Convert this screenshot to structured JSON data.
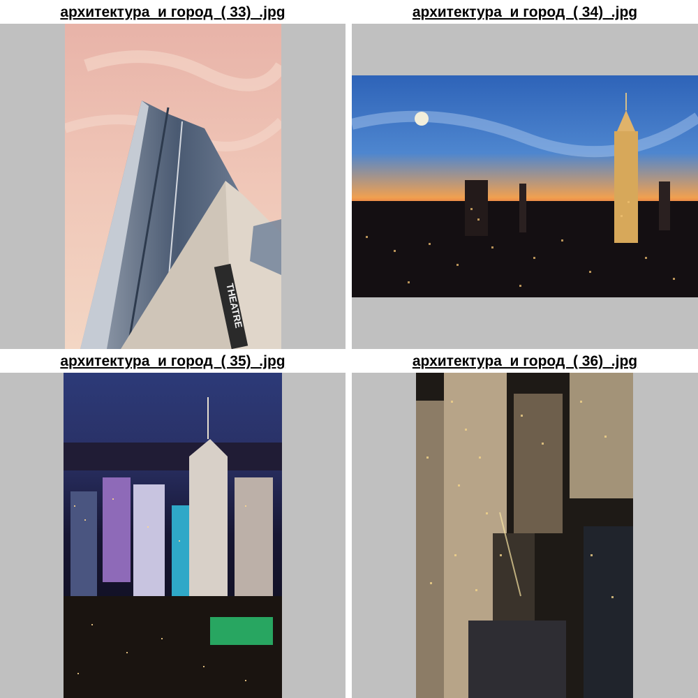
{
  "gallery": {
    "background_color": "#c0c0c0",
    "items": [
      {
        "filename": "архитектура  и город  ( 33)  .jpg",
        "thumbnail_icon": "skyscraper-sunset-photo-icon"
      },
      {
        "filename": "архитектура  и город  ( 34)  .jpg",
        "thumbnail_icon": "city-skyline-dusk-photo-icon",
        "sign_text": ""
      },
      {
        "filename": "архитектура  и город  ( 35)  .jpg",
        "thumbnail_icon": "night-city-lights-photo-icon"
      },
      {
        "filename": "архитектура  и город  ( 36)  .jpg",
        "thumbnail_icon": "night-towers-aerial-photo-icon"
      }
    ],
    "photo1_sign": "THEATRE"
  }
}
